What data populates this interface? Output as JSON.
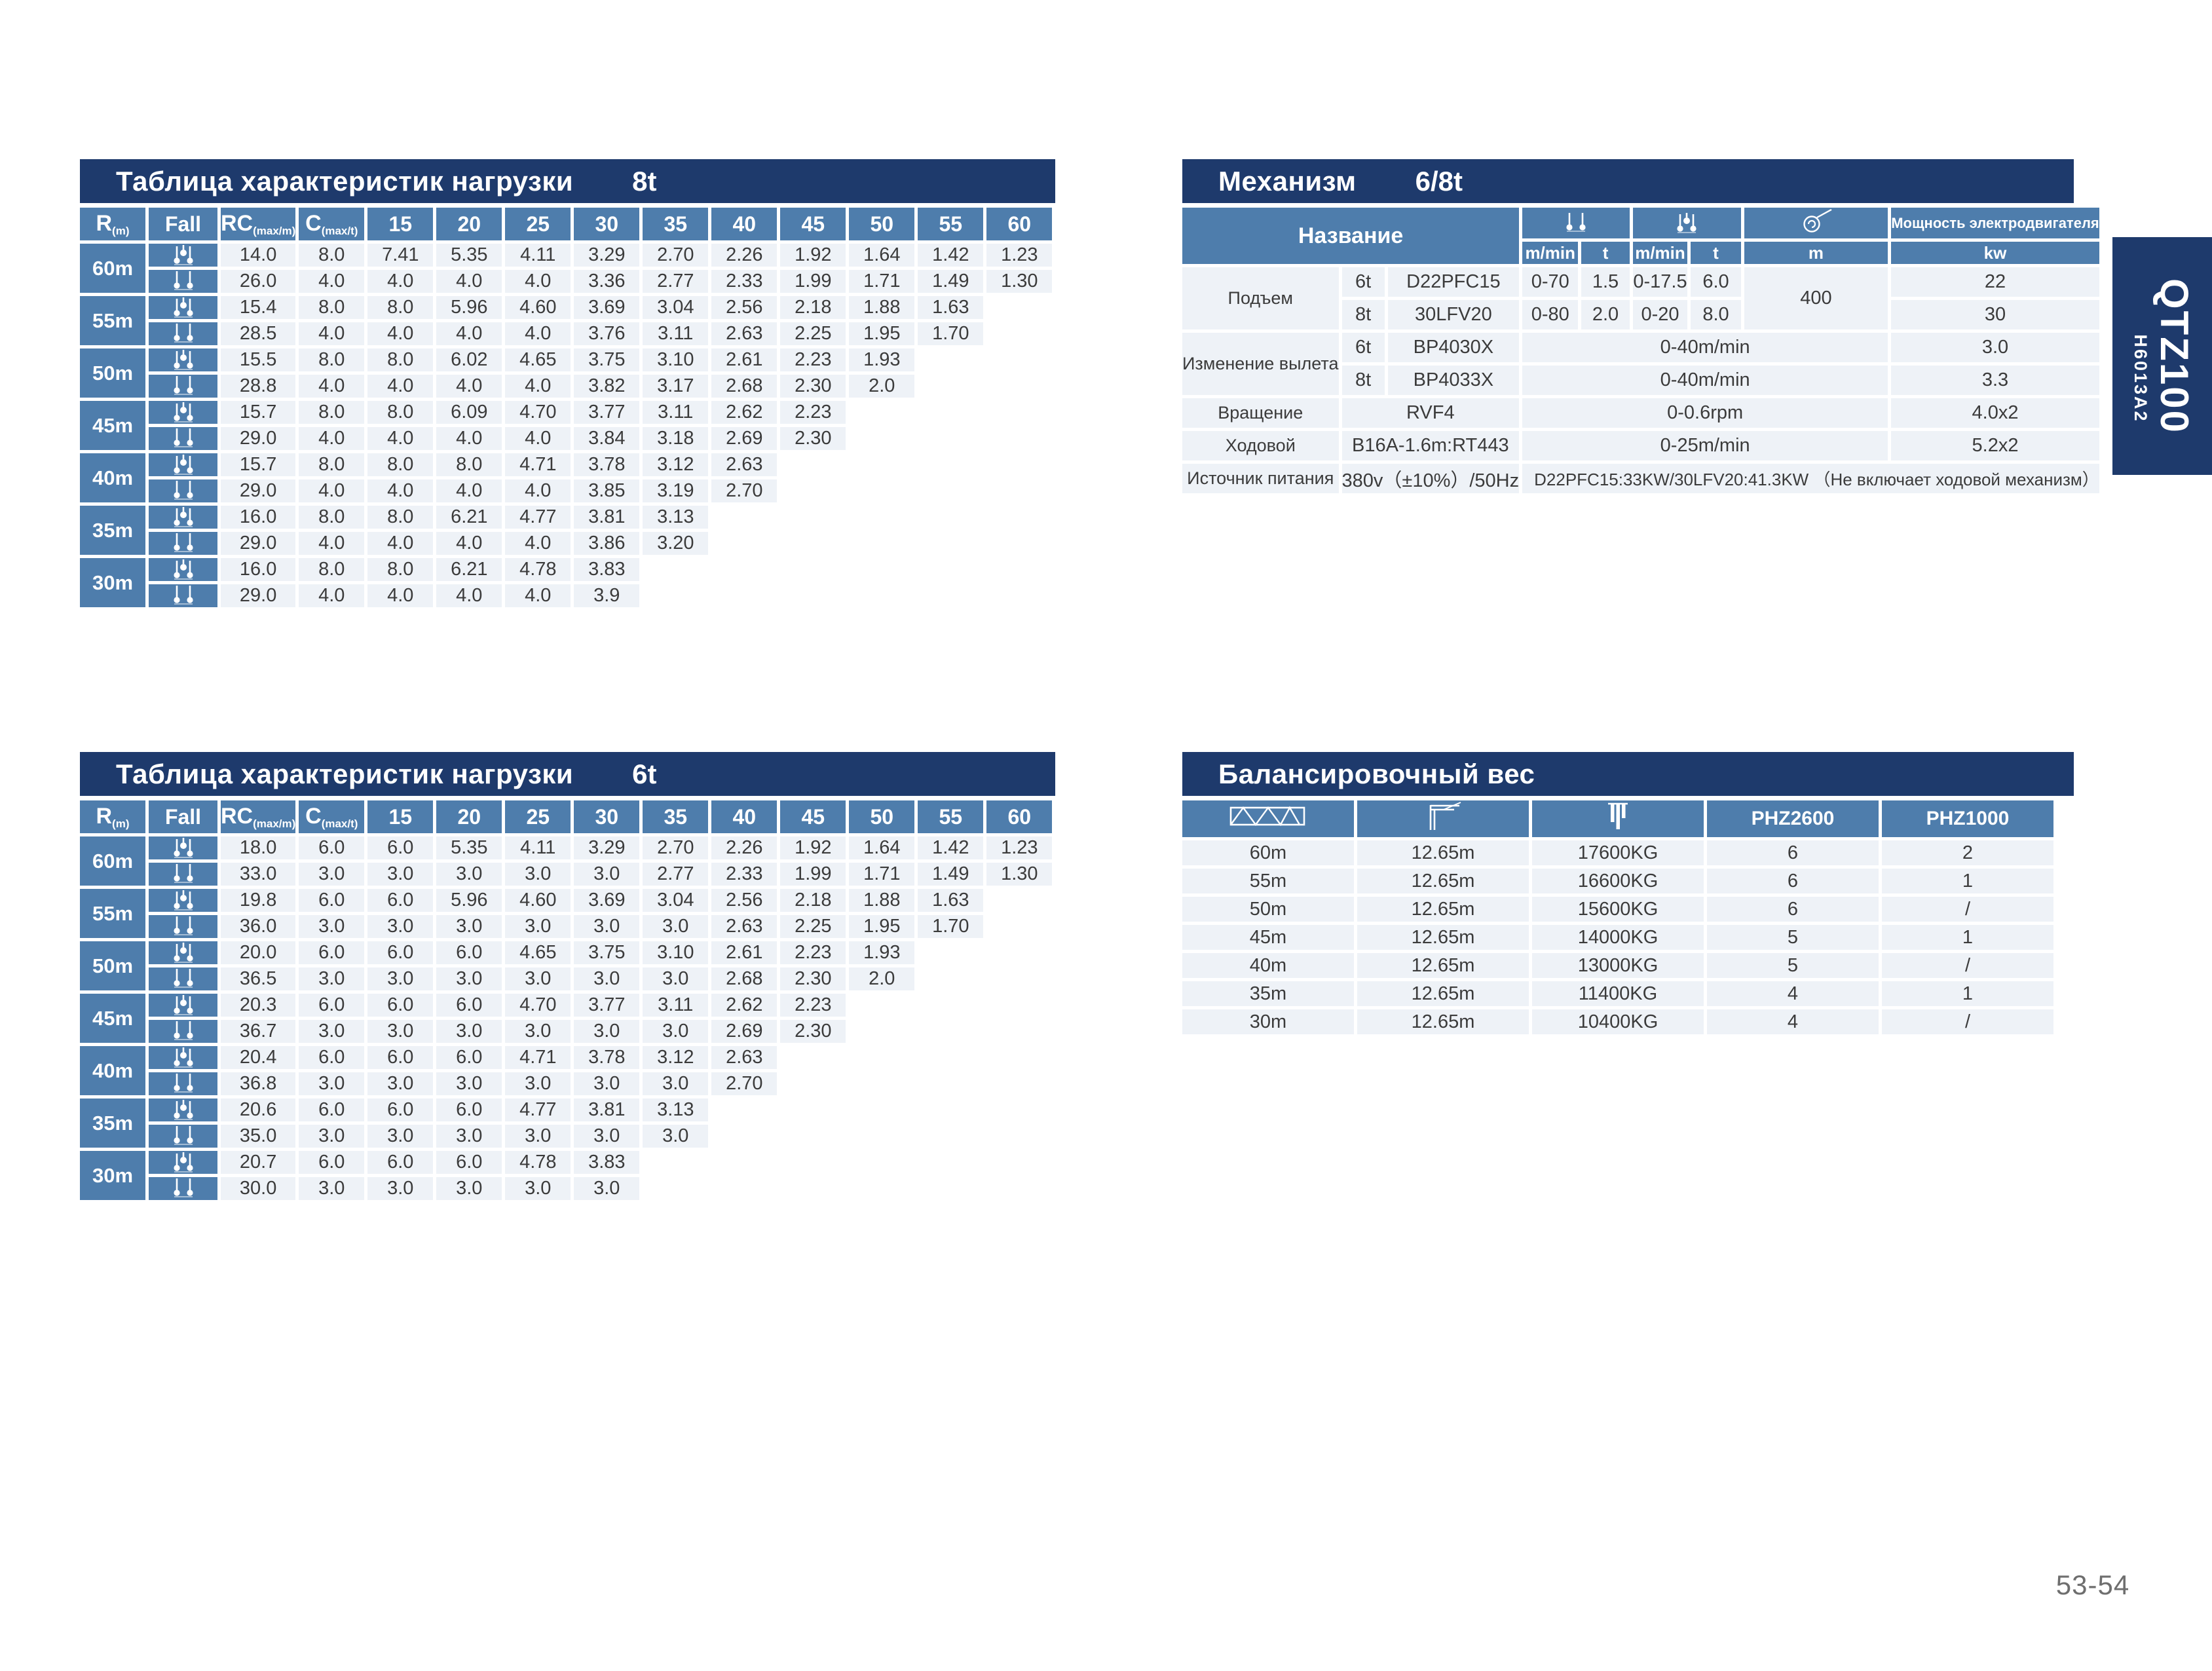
{
  "page": {
    "number": "53-54"
  },
  "side_tab": {
    "model": "QTZ100",
    "code": "H6013A2"
  },
  "colors": {
    "title_bar": "#1e3a6c",
    "header_blue": "#4e7dac",
    "cell_bg": "#eef2f7",
    "data_text": "#3b3b3b",
    "page_number": "#6e6e6e"
  },
  "icons": {
    "two_fall": "two-fall-hook-icon",
    "four_fall": "four-fall-hook-icon",
    "rope_drum": "rope-drum-icon",
    "jib_truss": "jib-truss-icon",
    "counter_jib": "counter-jib-icon",
    "counterweight": "counterweight-blocks-icon"
  },
  "load_tables": [
    {
      "title": "Таблица характеристик нагрузки",
      "tonnage": "8t",
      "headers": {
        "r": "R",
        "r_sub": "(m)",
        "fall": "Fall",
        "rc": "RC",
        "rc_sub": "(max/m)",
        "c": "C",
        "c_sub": "(max/t)",
        "radii": [
          "15",
          "20",
          "25",
          "30",
          "35",
          "40",
          "45",
          "50",
          "55",
          "60"
        ]
      },
      "groups": [
        {
          "radius": "60m",
          "fall4": [
            "14.0",
            "8.0",
            "7.41",
            "5.35",
            "4.11",
            "3.29",
            "2.70",
            "2.26",
            "1.92",
            "1.64",
            "1.42",
            "1.23"
          ],
          "fall2": [
            "26.0",
            "4.0",
            "4.0",
            "4.0",
            "4.0",
            "3.36",
            "2.77",
            "2.33",
            "1.99",
            "1.71",
            "1.49",
            "1.30"
          ]
        },
        {
          "radius": "55m",
          "fall4": [
            "15.4",
            "8.0",
            "8.0",
            "5.96",
            "4.60",
            "3.69",
            "3.04",
            "2.56",
            "2.18",
            "1.88",
            "1.63"
          ],
          "fall2": [
            "28.5",
            "4.0",
            "4.0",
            "4.0",
            "4.0",
            "3.76",
            "3.11",
            "2.63",
            "2.25",
            "1.95",
            "1.70"
          ]
        },
        {
          "radius": "50m",
          "fall4": [
            "15.5",
            "8.0",
            "8.0",
            "6.02",
            "4.65",
            "3.75",
            "3.10",
            "2.61",
            "2.23",
            "1.93"
          ],
          "fall2": [
            "28.8",
            "4.0",
            "4.0",
            "4.0",
            "4.0",
            "3.82",
            "3.17",
            "2.68",
            "2.30",
            "2.0"
          ]
        },
        {
          "radius": "45m",
          "fall4": [
            "15.7",
            "8.0",
            "8.0",
            "6.09",
            "4.70",
            "3.77",
            "3.11",
            "2.62",
            "2.23"
          ],
          "fall2": [
            "29.0",
            "4.0",
            "4.0",
            "4.0",
            "4.0",
            "3.84",
            "3.18",
            "2.69",
            "2.30"
          ]
        },
        {
          "radius": "40m",
          "fall4": [
            "15.7",
            "8.0",
            "8.0",
            "8.0",
            "4.71",
            "3.78",
            "3.12",
            "2.63"
          ],
          "fall2": [
            "29.0",
            "4.0",
            "4.0",
            "4.0",
            "4.0",
            "3.85",
            "3.19",
            "2.70"
          ]
        },
        {
          "radius": "35m",
          "fall4": [
            "16.0",
            "8.0",
            "8.0",
            "6.21",
            "4.77",
            "3.81",
            "3.13"
          ],
          "fall2": [
            "29.0",
            "4.0",
            "4.0",
            "4.0",
            "4.0",
            "3.86",
            "3.20"
          ]
        },
        {
          "radius": "30m",
          "fall4": [
            "16.0",
            "8.0",
            "8.0",
            "6.21",
            "4.78",
            "3.83"
          ],
          "fall2": [
            "29.0",
            "4.0",
            "4.0",
            "4.0",
            "4.0",
            "3.9"
          ]
        }
      ]
    },
    {
      "title": "Таблица характеристик нагрузки",
      "tonnage": "6t",
      "headers": {
        "r": "R",
        "r_sub": "(m)",
        "fall": "Fall",
        "rc": "RC",
        "rc_sub": "(max/m)",
        "c": "C",
        "c_sub": "(max/t)",
        "radii": [
          "15",
          "20",
          "25",
          "30",
          "35",
          "40",
          "45",
          "50",
          "55",
          "60"
        ]
      },
      "groups": [
        {
          "radius": "60m",
          "fall4": [
            "18.0",
            "6.0",
            "6.0",
            "5.35",
            "4.11",
            "3.29",
            "2.70",
            "2.26",
            "1.92",
            "1.64",
            "1.42",
            "1.23"
          ],
          "fall2": [
            "33.0",
            "3.0",
            "3.0",
            "3.0",
            "3.0",
            "3.0",
            "2.77",
            "2.33",
            "1.99",
            "1.71",
            "1.49",
            "1.30"
          ]
        },
        {
          "radius": "55m",
          "fall4": [
            "19.8",
            "6.0",
            "6.0",
            "5.96",
            "4.60",
            "3.69",
            "3.04",
            "2.56",
            "2.18",
            "1.88",
            "1.63"
          ],
          "fall2": [
            "36.0",
            "3.0",
            "3.0",
            "3.0",
            "3.0",
            "3.0",
            "3.0",
            "2.63",
            "2.25",
            "1.95",
            "1.70"
          ]
        },
        {
          "radius": "50m",
          "fall4": [
            "20.0",
            "6.0",
            "6.0",
            "6.0",
            "4.65",
            "3.75",
            "3.10",
            "2.61",
            "2.23",
            "1.93"
          ],
          "fall2": [
            "36.5",
            "3.0",
            "3.0",
            "3.0",
            "3.0",
            "3.0",
            "3.0",
            "2.68",
            "2.30",
            "2.0"
          ]
        },
        {
          "radius": "45m",
          "fall4": [
            "20.3",
            "6.0",
            "6.0",
            "6.0",
            "4.70",
            "3.77",
            "3.11",
            "2.62",
            "2.23"
          ],
          "fall2": [
            "36.7",
            "3.0",
            "3.0",
            "3.0",
            "3.0",
            "3.0",
            "3.0",
            "2.69",
            "2.30"
          ]
        },
        {
          "radius": "40m",
          "fall4": [
            "20.4",
            "6.0",
            "6.0",
            "6.0",
            "4.71",
            "3.78",
            "3.12",
            "2.63"
          ],
          "fall2": [
            "36.8",
            "3.0",
            "3.0",
            "3.0",
            "3.0",
            "3.0",
            "3.0",
            "2.70"
          ]
        },
        {
          "radius": "35m",
          "fall4": [
            "20.6",
            "6.0",
            "6.0",
            "6.0",
            "4.77",
            "3.81",
            "3.13"
          ],
          "fall2": [
            "35.0",
            "3.0",
            "3.0",
            "3.0",
            "3.0",
            "3.0",
            "3.0"
          ]
        },
        {
          "radius": "30m",
          "fall4": [
            "20.7",
            "6.0",
            "6.0",
            "6.0",
            "4.78",
            "3.83"
          ],
          "fall2": [
            "30.0",
            "3.0",
            "3.0",
            "3.0",
            "3.0",
            "3.0"
          ]
        }
      ]
    }
  ],
  "mechanism": {
    "title": "Механизм",
    "tonnage": "6/8t",
    "name_header": "Название",
    "power_header": "Мощность электродвигателя",
    "units": {
      "speed2": "m/min",
      "load2": "t",
      "speed4": "m/min",
      "load4": "t",
      "rope": "m",
      "power": "kw"
    },
    "hoist": {
      "label": "Подъем",
      "rope_length": "400",
      "rows": [
        {
          "size": "6t",
          "model": "D22PFC15",
          "s2": "0-70",
          "l2": "1.5",
          "s4": "0-17.5",
          "l4": "6.0",
          "kw": "22"
        },
        {
          "size": "8t",
          "model": "30LFV20",
          "s2": "0-80",
          "l2": "2.0",
          "s4": "0-20",
          "l4": "8.0",
          "kw": "30"
        }
      ]
    },
    "luffing": {
      "label": "Изменение вылета",
      "rows": [
        {
          "size": "6t",
          "model": "BP4030X",
          "speed": "0-40m/min",
          "kw": "3.0"
        },
        {
          "size": "8t",
          "model": "BP4033X",
          "speed": "0-40m/min",
          "kw": "3.3"
        }
      ]
    },
    "slewing": {
      "label": "Вращение",
      "model": "RVF4",
      "speed": "0-0.6rpm",
      "kw": "4.0x2"
    },
    "travel": {
      "label": "Ходовой",
      "model": "B16A-1.6m:RT443",
      "speed": "0-25m/min",
      "kw": "5.2x2"
    },
    "power_supply": {
      "label": "Источник питания",
      "voltage": "380v（±10%）/50Hz",
      "note": "D22PFC15:33KW/30LFV20:41.3KW （Не включает ходовой механизм）"
    }
  },
  "balance": {
    "title": "Балансировочный вес",
    "model_headers": [
      "PHZ2600",
      "PHZ1000"
    ],
    "rows": [
      [
        "60m",
        "12.65m",
        "17600KG",
        "6",
        "2"
      ],
      [
        "55m",
        "12.65m",
        "16600KG",
        "6",
        "1"
      ],
      [
        "50m",
        "12.65m",
        "15600KG",
        "6",
        "/"
      ],
      [
        "45m",
        "12.65m",
        "14000KG",
        "5",
        "1"
      ],
      [
        "40m",
        "12.65m",
        "13000KG",
        "5",
        "/"
      ],
      [
        "35m",
        "12.65m",
        "11400KG",
        "4",
        "1"
      ],
      [
        "30m",
        "12.65m",
        "10400KG",
        "4",
        "/"
      ]
    ]
  }
}
